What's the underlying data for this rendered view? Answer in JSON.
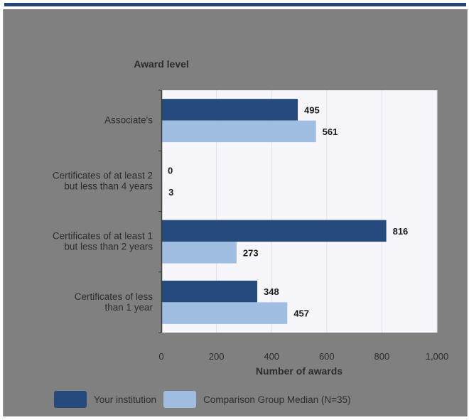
{
  "chart_data": {
    "type": "bar",
    "orientation": "horizontal",
    "category_axis_title": "Award level",
    "xlabel": "Number of awards",
    "categories": [
      [
        "Associate's"
      ],
      [
        "Certificates of at least 2",
        "but less than 4 years"
      ],
      [
        "Certificates of at least 1",
        "but  less than 2 years"
      ],
      [
        "Certificates of less",
        "than 1 year"
      ]
    ],
    "series": [
      {
        "name": "Your institution",
        "color": "#244b7b",
        "values": [
          495,
          0,
          816,
          348
        ]
      },
      {
        "name": "Comparison Group Median (N=35)",
        "color": "#a0bde2",
        "values": [
          561,
          3,
          273,
          457
        ]
      }
    ],
    "xlim": [
      0,
      1000
    ],
    "xticks": [
      0,
      200,
      400,
      600,
      800,
      1000
    ],
    "xtick_labels": [
      "0",
      "200",
      "400",
      "600",
      "800",
      "1,000"
    ],
    "grid": true,
    "legend": "bottom"
  }
}
